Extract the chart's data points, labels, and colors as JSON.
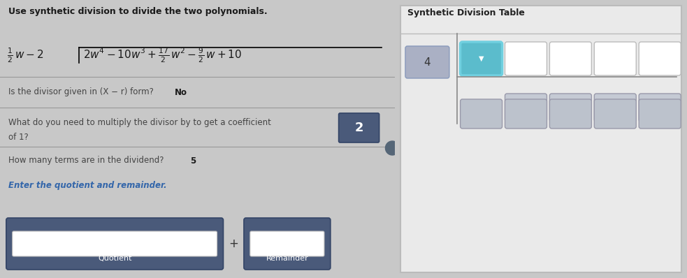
{
  "bg_color": "#c8c8c8",
  "left_panel_bg": "#e2e4e8",
  "right_panel_bg": "#eaeaea",
  "title_text": "Use synthetic division to divide the two polynomials.",
  "q1_text": "Is the divisor given in (X − r) form?",
  "q1_answer": "No",
  "q2_line1": "What do you need to multiply the divisor by to get a coefficient",
  "q2_line2": "of 1?",
  "q2_answer": "2",
  "q3_text": "How many terms are in the dividend?",
  "q3_answer": "5",
  "q4_text": "Enter the quotient and remainder.",
  "quotient_label": "Quotient",
  "remainder_label": "Remainder",
  "table_title": "Synthetic Division Table",
  "cell_value_4": "4",
  "dark_blue": "#4a5a7a",
  "highlight_cyan": "#5bbccc",
  "highlight_cyan_border": "#70d0e0",
  "cell_white": "#ffffff",
  "cell_gray1": "#c5cad4",
  "cell_gray2": "#bcc2cc",
  "cell_gray3": "#b8bdc8",
  "cell_4_color": "#aab0c4",
  "separator_color": "#999999",
  "text_dark": "#1a1a1a",
  "text_mid": "#444444",
  "italic_blue": "#3366aa"
}
